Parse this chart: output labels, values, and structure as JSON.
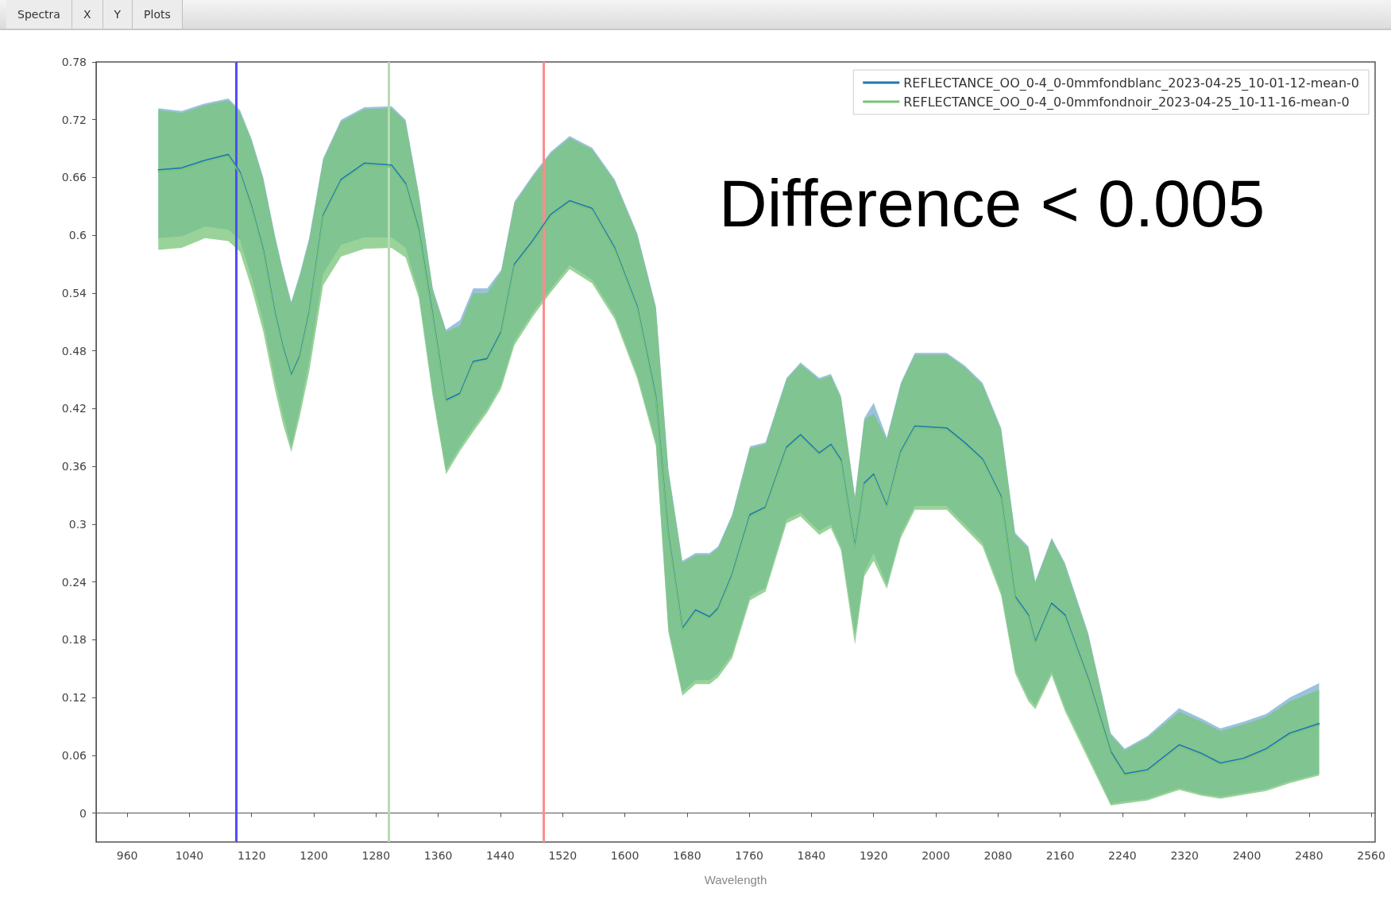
{
  "chart_data": {
    "type": "line",
    "xlabel": "Wavelength",
    "annotations": [
      "Difference < 0.005",
      "Spectra",
      "X",
      "Y",
      "Plots"
    ],
    "x": [
      1000,
      1030,
      1060,
      1090,
      1105,
      1120,
      1135,
      1150,
      1160,
      1171,
      1182,
      1194,
      1212,
      1235,
      1265,
      1300,
      1318,
      1335,
      1353,
      1370,
      1388,
      1405,
      1423,
      1441,
      1458,
      1482,
      1505,
      1529,
      1558,
      1587,
      1616,
      1640,
      1656,
      1674,
      1691,
      1709,
      1720,
      1738,
      1761,
      1781,
      1808,
      1826,
      1850,
      1865,
      1878,
      1896,
      1908,
      1920,
      1937,
      1955,
      1973,
      2014,
      2037,
      2060,
      2084,
      2102,
      2119,
      2128,
      2149,
      2166,
      2196,
      2225,
      2243,
      2272,
      2313,
      2342,
      2366,
      2396,
      2425,
      2455,
      2493
    ],
    "series": [
      {
        "name": "REFLECTANCE_OO_0-4_0-0mmfondblanc_2023-04-25_10-01-12-mean-0",
        "color": "#1f77b4",
        "values": [
          0.668,
          0.67,
          0.678,
          0.684,
          0.666,
          0.63,
          0.585,
          0.52,
          0.485,
          0.455,
          0.475,
          0.52,
          0.621,
          0.658,
          0.675,
          0.673,
          0.654,
          0.606,
          0.517,
          0.429,
          0.436,
          0.469,
          0.472,
          0.5,
          0.57,
          0.595,
          0.622,
          0.636,
          0.628,
          0.587,
          0.526,
          0.432,
          0.29,
          0.192,
          0.211,
          0.204,
          0.213,
          0.248,
          0.31,
          0.318,
          0.38,
          0.393,
          0.374,
          0.383,
          0.367,
          0.277,
          0.343,
          0.352,
          0.319,
          0.376,
          0.402,
          0.4,
          0.385,
          0.368,
          0.329,
          0.225,
          0.206,
          0.178,
          0.218,
          0.206,
          0.14,
          0.064,
          0.041,
          0.045,
          0.071,
          0.062,
          0.052,
          0.057,
          0.067,
          0.083,
          0.093
        ],
        "upper": [
          0.732,
          0.729,
          0.737,
          0.742,
          0.73,
          0.7,
          0.66,
          0.6,
          0.565,
          0.531,
          0.56,
          0.597,
          0.68,
          0.72,
          0.733,
          0.734,
          0.72,
          0.644,
          0.545,
          0.502,
          0.512,
          0.545,
          0.545,
          0.564,
          0.635,
          0.663,
          0.687,
          0.703,
          0.691,
          0.658,
          0.602,
          0.526,
          0.357,
          0.262,
          0.27,
          0.27,
          0.277,
          0.31,
          0.381,
          0.385,
          0.452,
          0.468,
          0.452,
          0.456,
          0.433,
          0.329,
          0.41,
          0.426,
          0.39,
          0.447,
          0.478,
          0.478,
          0.465,
          0.447,
          0.4,
          0.291,
          0.277,
          0.241,
          0.286,
          0.26,
          0.187,
          0.083,
          0.067,
          0.08,
          0.109,
          0.098,
          0.088,
          0.095,
          0.103,
          0.12,
          0.135
        ],
        "lower": [
          0.597,
          0.599,
          0.609,
          0.606,
          0.595,
          0.556,
          0.51,
          0.45,
          0.415,
          0.38,
          0.42,
          0.469,
          0.56,
          0.59,
          0.598,
          0.598,
          0.587,
          0.54,
          0.436,
          0.356,
          0.38,
          0.4,
          0.42,
          0.445,
          0.49,
          0.52,
          0.545,
          0.569,
          0.554,
          0.517,
          0.455,
          0.385,
          0.192,
          0.126,
          0.138,
          0.138,
          0.145,
          0.165,
          0.225,
          0.234,
          0.305,
          0.312,
          0.293,
          0.3,
          0.277,
          0.185,
          0.25,
          0.27,
          0.237,
          0.29,
          0.319,
          0.319,
          0.3,
          0.281,
          0.23,
          0.149,
          0.12,
          0.112,
          0.147,
          0.11,
          0.06,
          0.01,
          0.012,
          0.015,
          0.026,
          0.02,
          0.017,
          0.021,
          0.025,
          0.033,
          0.041
        ]
      },
      {
        "name": "REFLECTANCE_OO_0-4_0-0mmfondnoir_2023-04-25_10-11-16-mean-0",
        "color": "#77c477",
        "values": [
          0.666,
          0.668,
          0.676,
          0.682,
          0.664,
          0.628,
          0.583,
          0.518,
          0.483,
          0.453,
          0.473,
          0.518,
          0.619,
          0.656,
          0.673,
          0.671,
          0.652,
          0.604,
          0.515,
          0.427,
          0.434,
          0.467,
          0.47,
          0.498,
          0.568,
          0.593,
          0.62,
          0.634,
          0.626,
          0.585,
          0.524,
          0.43,
          0.288,
          0.19,
          0.209,
          0.202,
          0.211,
          0.246,
          0.308,
          0.316,
          0.378,
          0.391,
          0.372,
          0.381,
          0.365,
          0.275,
          0.341,
          0.35,
          0.317,
          0.374,
          0.4,
          0.398,
          0.383,
          0.366,
          0.327,
          0.223,
          0.204,
          0.176,
          0.216,
          0.204,
          0.138,
          0.062,
          0.039,
          0.043,
          0.069,
          0.06,
          0.05,
          0.055,
          0.065,
          0.081,
          0.091
        ],
        "upper": [
          0.73,
          0.727,
          0.735,
          0.74,
          0.728,
          0.698,
          0.658,
          0.598,
          0.563,
          0.529,
          0.558,
          0.595,
          0.678,
          0.718,
          0.731,
          0.732,
          0.718,
          0.642,
          0.543,
          0.5,
          0.506,
          0.54,
          0.54,
          0.562,
          0.633,
          0.661,
          0.685,
          0.701,
          0.689,
          0.656,
          0.6,
          0.524,
          0.355,
          0.26,
          0.268,
          0.268,
          0.275,
          0.308,
          0.379,
          0.383,
          0.45,
          0.466,
          0.45,
          0.454,
          0.431,
          0.327,
          0.408,
          0.415,
          0.388,
          0.445,
          0.476,
          0.476,
          0.463,
          0.445,
          0.398,
          0.289,
          0.275,
          0.239,
          0.284,
          0.258,
          0.185,
          0.081,
          0.065,
          0.078,
          0.105,
          0.095,
          0.085,
          0.092,
          0.1,
          0.116,
          0.128
        ],
        "lower": [
          0.585,
          0.587,
          0.597,
          0.594,
          0.583,
          0.545,
          0.5,
          0.44,
          0.405,
          0.375,
          0.412,
          0.458,
          0.548,
          0.578,
          0.586,
          0.587,
          0.577,
          0.535,
          0.432,
          0.352,
          0.376,
          0.396,
          0.416,
          0.441,
          0.486,
          0.516,
          0.541,
          0.565,
          0.55,
          0.513,
          0.451,
          0.381,
          0.188,
          0.122,
          0.134,
          0.134,
          0.141,
          0.161,
          0.221,
          0.23,
          0.301,
          0.308,
          0.289,
          0.296,
          0.273,
          0.175,
          0.246,
          0.262,
          0.233,
          0.286,
          0.315,
          0.315,
          0.296,
          0.277,
          0.226,
          0.145,
          0.116,
          0.108,
          0.143,
          0.106,
          0.056,
          0.008,
          0.01,
          0.013,
          0.024,
          0.018,
          0.015,
          0.019,
          0.023,
          0.031,
          0.039
        ]
      }
    ],
    "xlim": [
      920,
      2565
    ],
    "xticks": [
      960,
      1040,
      1120,
      1200,
      1280,
      1360,
      1440,
      1520,
      1600,
      1680,
      1760,
      1840,
      1920,
      2000,
      2080,
      2160,
      2240,
      2320,
      2400,
      2480,
      2560
    ],
    "ylim": [
      -0.03,
      0.78
    ],
    "yticks": [
      0,
      0.06,
      0.12,
      0.18,
      0.24,
      0.3,
      0.36,
      0.42,
      0.48,
      0.54,
      0.6,
      0.66,
      0.72,
      0.78
    ],
    "ref_lines": [
      {
        "axis": "x",
        "value": 1100,
        "color": "#4d4dff"
      },
      {
        "axis": "x",
        "value": 1296,
        "color": "#b8dcb2"
      },
      {
        "axis": "x",
        "value": 1496,
        "color": "#ff8c8c"
      }
    ],
    "legend": "top right",
    "line_style": "solid"
  }
}
